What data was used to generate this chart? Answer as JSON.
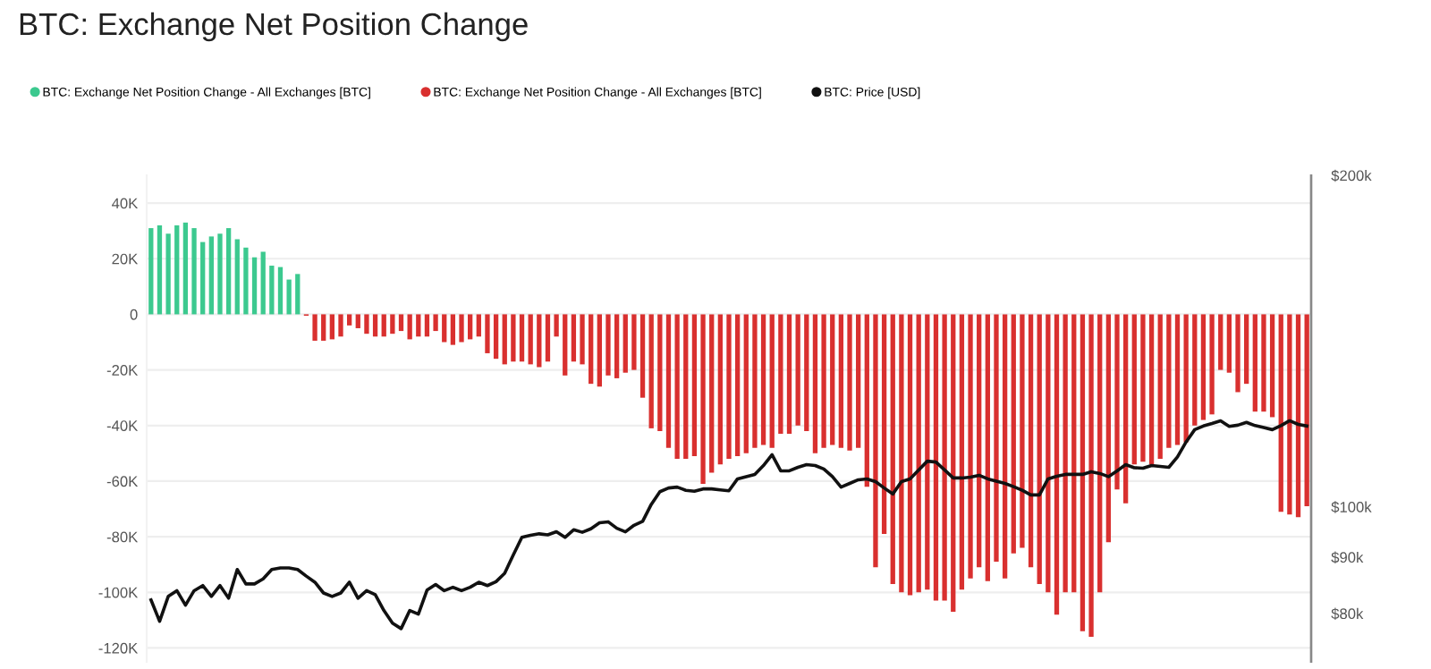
{
  "chart_data": {
    "type": "bar",
    "title": "BTC: Exchange Net Position Change",
    "categories": [
      null,
      null,
      null,
      null,
      null,
      null,
      null,
      null,
      null,
      null,
      null,
      null,
      null,
      null,
      null,
      null,
      null,
      null,
      null,
      null,
      null,
      null,
      null,
      null,
      null,
      null,
      null,
      null,
      null,
      null,
      null,
      null,
      null,
      null,
      null,
      null,
      null,
      null,
      null,
      null,
      null,
      null,
      null,
      null,
      null,
      null,
      null,
      null,
      null,
      null,
      null,
      null,
      null,
      null,
      null,
      null,
      null,
      null,
      null,
      null,
      null,
      null,
      null,
      null,
      null,
      null,
      null,
      null,
      null,
      null,
      null,
      null,
      null,
      null,
      null,
      null,
      null,
      null,
      null,
      null,
      null,
      null,
      null,
      null,
      null,
      null,
      null,
      null,
      null,
      null,
      null,
      null,
      null,
      null,
      null,
      null,
      null,
      null,
      null,
      null,
      null,
      null,
      null,
      null,
      null,
      null,
      null,
      null,
      null,
      null,
      null,
      null,
      null,
      null,
      null,
      null,
      null,
      null,
      null,
      null,
      null,
      null,
      null,
      null,
      null,
      null,
      null,
      null,
      null,
      null,
      null,
      null,
      null,
      null,
      null
    ],
    "series": [
      {
        "name": "BTC: Exchange Net Position Change - All Exchanges [BTC]",
        "color": "#3cc98f",
        "values": [
          31000,
          32000,
          29000,
          32000,
          33000,
          31000,
          26000,
          28000,
          29000,
          31000,
          27000,
          24000,
          20500,
          22500,
          17500,
          17000,
          12500,
          14500,
          null,
          null,
          null,
          null,
          null,
          null,
          null,
          null,
          null,
          null,
          null,
          null,
          null,
          null,
          null,
          null,
          null,
          null,
          null,
          null,
          null,
          null,
          null,
          null,
          null,
          null,
          null,
          null,
          null,
          null,
          null,
          null,
          null,
          null,
          null,
          null,
          null,
          null,
          null,
          null,
          null,
          null,
          null,
          null,
          null,
          null,
          null,
          null,
          null,
          null,
          null,
          null,
          null,
          null,
          null,
          null,
          null,
          null,
          null,
          null,
          null,
          null,
          null,
          null,
          null,
          null,
          null,
          null,
          null,
          null,
          null,
          null,
          null,
          null,
          null,
          null,
          null,
          null,
          null,
          null,
          null,
          null,
          null,
          null,
          null,
          null,
          null,
          null,
          null,
          null,
          null,
          null,
          null,
          null,
          null,
          null,
          null,
          null,
          null,
          null,
          null,
          null,
          null,
          null,
          null,
          null,
          null,
          null,
          null,
          null,
          null,
          null,
          null,
          null,
          null,
          null,
          null
        ]
      },
      {
        "name": "BTC: Exchange Net Position Change - All Exchanges [BTC]",
        "color": "#d9302f",
        "values": [
          null,
          null,
          null,
          null,
          null,
          null,
          null,
          null,
          null,
          null,
          null,
          null,
          null,
          null,
          null,
          null,
          null,
          null,
          -500,
          -9500,
          -9500,
          -9000,
          -8000,
          -4000,
          -5000,
          -7000,
          -8000,
          -8000,
          -7000,
          -6000,
          -9000,
          -8000,
          -8000,
          -6000,
          -10000,
          -11000,
          -10000,
          -9000,
          -8000,
          -14000,
          -16000,
          -18000,
          -17000,
          -17000,
          -18000,
          -19000,
          -17000,
          -8000,
          -22000,
          -17000,
          -18000,
          -25000,
          -26000,
          -22000,
          -23000,
          -21000,
          -20000,
          -30000,
          -41000,
          -42000,
          -48000,
          -52000,
          -52000,
          -51000,
          -61000,
          -57000,
          -54000,
          -52000,
          -51000,
          -50000,
          -48000,
          -47000,
          -48000,
          -43000,
          -43000,
          -40000,
          -42000,
          -50000,
          -48000,
          -47000,
          -48000,
          -49000,
          -48000,
          -62000,
          -91000,
          -79000,
          -97000,
          -100000,
          -101000,
          -100000,
          -99000,
          -103000,
          -103000,
          -107000,
          -99000,
          -95000,
          -91000,
          -96000,
          -89000,
          -95000,
          -86000,
          -84000,
          -91000,
          -97000,
          -100000,
          -108000,
          -100000,
          -100000,
          -114000,
          -116000,
          -100000,
          -82000,
          -63000,
          -68000,
          -54000,
          -53000,
          -54000,
          -52000,
          -48000,
          -47000,
          -46000,
          -40000,
          -38000,
          -36000,
          -20000,
          -21000,
          -28000,
          -25000,
          -35000,
          -35000,
          -37000,
          -71000,
          -72000,
          -73000,
          -69000
        ]
      },
      {
        "name": "BTC: Price [USD]",
        "type": "line",
        "axis": "y2",
        "color": "#111111",
        "values": [
          82300,
          78700,
          82900,
          83900,
          81400,
          83900,
          84800,
          82900,
          84800,
          82600,
          87700,
          85100,
          85100,
          86000,
          87700,
          88000,
          88000,
          87700,
          86500,
          85400,
          83500,
          82900,
          83500,
          85400,
          82600,
          83900,
          83200,
          80500,
          78400,
          77500,
          80500,
          79900,
          84000,
          85000,
          83900,
          84500,
          83900,
          84500,
          85400,
          84800,
          85500,
          87000,
          90400,
          93800,
          94200,
          94500,
          94300,
          94900,
          93800,
          95300,
          94800,
          95500,
          96700,
          96900,
          95600,
          94900,
          96200,
          97000,
          100500,
          103200,
          104000,
          104200,
          103500,
          103300,
          103800,
          103800,
          103600,
          103400,
          106000,
          106500,
          107000,
          109000,
          111500,
          107800,
          107800,
          108600,
          109200,
          109000,
          108200,
          106500,
          104200,
          105000,
          105800,
          106000,
          105400,
          104000,
          102700,
          105400,
          106000,
          108000,
          110000,
          109800,
          108000,
          106200,
          106200,
          106400,
          106800,
          106000,
          105500,
          105000,
          104300,
          103500,
          102500,
          102500,
          106000,
          106600,
          107000,
          107000,
          107000,
          107600,
          107200,
          106500,
          107800,
          109200,
          108500,
          108400,
          109000,
          108800,
          108600,
          111000,
          114500,
          117500,
          118400,
          119000,
          119700,
          118300,
          118600,
          119300,
          118500,
          118000,
          117500,
          118500,
          119700,
          118800,
          118400
        ]
      }
    ],
    "ylim": [
      -125000,
      50000
    ],
    "yticks": [
      {
        "value": -120000,
        "label": "-120K"
      },
      {
        "value": -100000,
        "label": "-100K"
      },
      {
        "value": -80000,
        "label": "-80K"
      },
      {
        "value": -60000,
        "label": "-60K"
      },
      {
        "value": -40000,
        "label": "-40K"
      },
      {
        "value": -20000,
        "label": "-20K"
      },
      0,
      {
        "value": 20000,
        "label": "20K"
      },
      {
        "value": 40000,
        "label": "40K"
      }
    ],
    "y2lim": [
      72300,
      200000
    ],
    "y2ticks": [
      {
        "value": 80000,
        "label": "$80k"
      },
      {
        "value": 90000,
        "label": "$90k"
      },
      {
        "value": 100000,
        "label": "$100k"
      },
      {
        "value": 200000,
        "label": "$200k"
      }
    ],
    "log": "y2",
    "grid": "y",
    "legend": "top left"
  }
}
